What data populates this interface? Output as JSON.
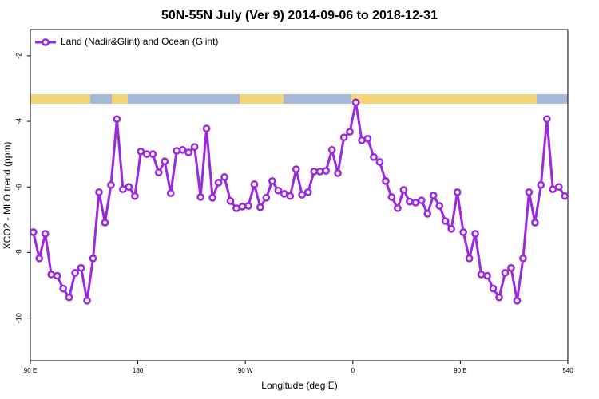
{
  "chart_data": {
    "type": "line",
    "title": "50N-55N July (Ver 9)   2014-09-06 to 2018-12-31",
    "x_label": "Longitude (deg E)",
    "y_label": "XCO2 - MLO trend (ppm)",
    "x": [
      92.5,
      97.5,
      102.5,
      107.5,
      112.5,
      117.5,
      122.5,
      127.5,
      132.5,
      137.5,
      142.5,
      147.5,
      152.5,
      157.5,
      162.5,
      167.5,
      172.5,
      177.5,
      182.5,
      187.5,
      192.5,
      197.5,
      202.5,
      207.5,
      212.5,
      217.5,
      222.5,
      227.5,
      232.5,
      237.5,
      242.5,
      247.5,
      252.5,
      257.5,
      262.5,
      267.5,
      272.5,
      277.5,
      282.5,
      287.5,
      292.5,
      297.5,
      302.5,
      307.5,
      312.5,
      317.5,
      322.5,
      327.5,
      332.5,
      337.5,
      342.5,
      347.5,
      352.5,
      357.5,
      362.5,
      367.5,
      372.5,
      377.5,
      382.5,
      387.5,
      392.5,
      397.5,
      402.5,
      407.5,
      412.5,
      417.5,
      422.5,
      427.5,
      432.5,
      437.5,
      442.5,
      447.5,
      452.5,
      457.5,
      462.5,
      467.5,
      472.5,
      477.5,
      482.5,
      487.5,
      492.5,
      497.5,
      502.5,
      507.5,
      512.5,
      517.5,
      522.5,
      527.5,
      532.5,
      537.5
    ],
    "series": [
      {
        "name": "Land (Nadir&Glint) and Ocean (Glint)",
        "color": "#9b27e0",
        "values": [
          -7.38,
          -8.18,
          -7.43,
          -8.67,
          -8.71,
          -9.1,
          -9.37,
          -8.62,
          -8.47,
          -9.47,
          -8.18,
          -6.16,
          -7.09,
          -5.94,
          -3.93,
          -6.07,
          -6.0,
          -6.28,
          -4.92,
          -5.0,
          -5.0,
          -5.56,
          -5.22,
          -6.19,
          -4.9,
          -4.87,
          -4.95,
          -4.78,
          -6.31,
          -4.22,
          -6.33,
          -5.87,
          -5.7,
          -6.43,
          -6.65,
          -6.6,
          -6.58,
          -5.92,
          -6.62,
          -6.33,
          -5.82,
          -6.11,
          -6.21,
          -6.28,
          -5.46,
          -6.24,
          -6.16,
          -5.53,
          -5.53,
          -5.51,
          -4.87,
          -5.58,
          -4.49,
          -4.32,
          -3.42,
          -4.58,
          -4.53,
          -5.09,
          -5.24,
          -5.82,
          -6.31,
          -6.65,
          -6.09,
          -6.45,
          -6.48,
          -6.41,
          -6.82,
          -6.26,
          -6.58,
          -7.04,
          -7.28,
          -6.16,
          -7.38,
          -8.18,
          -7.43,
          -8.67,
          -8.71,
          -9.1,
          -9.37,
          -8.62,
          -8.47,
          -9.47,
          -8.18,
          -6.16,
          -7.09,
          -5.94,
          -3.93,
          -6.07,
          -6.0,
          -6.28
        ]
      }
    ],
    "xlim": [
      90,
      540
    ],
    "xticks": [
      {
        "value": 90,
        "label": "90 E"
      },
      180,
      {
        "value": 270,
        "label": "90 W"
      },
      {
        "value": 360,
        "label": "0"
      },
      {
        "value": 450,
        "label": "90 E"
      },
      540
    ],
    "ylim": [
      -11.3,
      -1.2
    ],
    "yticks": [
      -2,
      -4,
      -6,
      -8,
      -10
    ],
    "legend": "top-left"
  }
}
